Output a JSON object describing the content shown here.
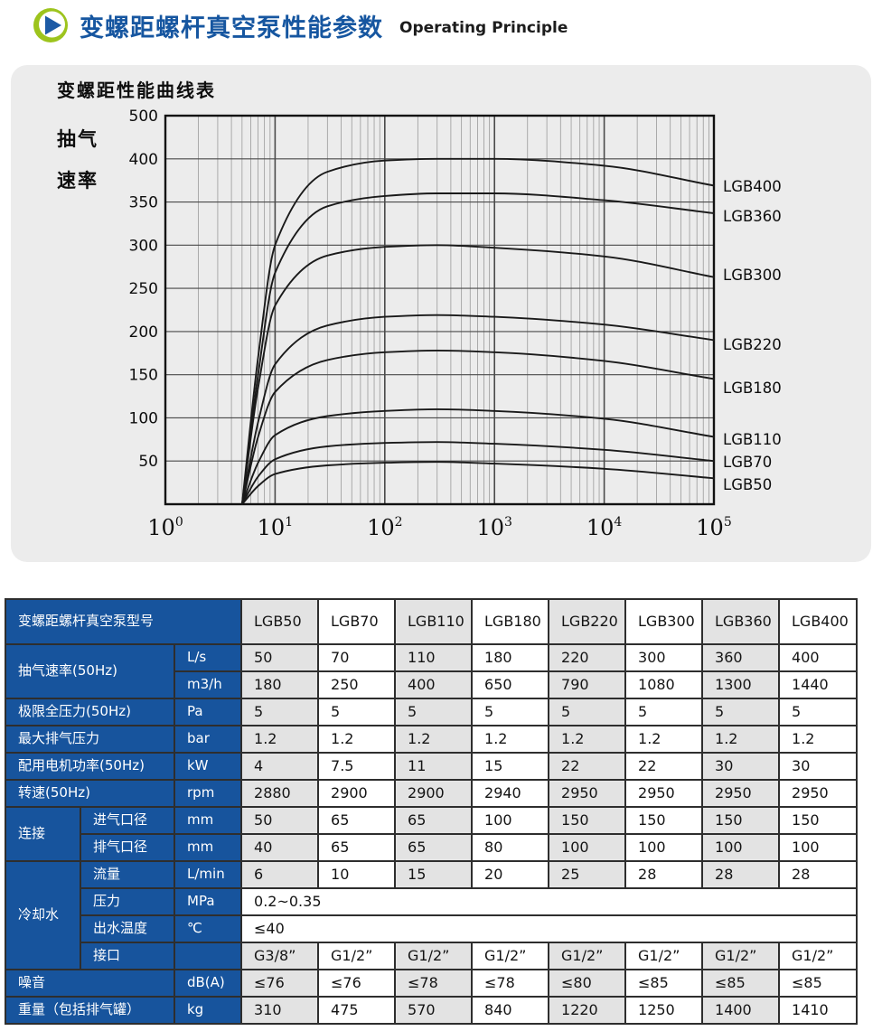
{
  "header": {
    "title_zh": "变螺距螺杆真空泵性能参数",
    "title_en": "Operating Principle",
    "icon": "play-icon"
  },
  "colors": {
    "accent_blue": "#17549d",
    "stripe_gray": "#e3e3e3",
    "panel_bg": "#ececec",
    "title_blue": "#1656a0",
    "icon_green": "#9dc41d",
    "icon_blue": "#1c5aa5",
    "curve_color": "#1a1a1a"
  },
  "chart_data": {
    "type": "line",
    "title": "变螺距性能曲线表",
    "ylabel_line1": "抽气",
    "ylabel_line2": "速率",
    "x_scale": "log",
    "x_range": [
      1,
      100000
    ],
    "x_tick_exponents": [
      0,
      1,
      2,
      3,
      4,
      5
    ],
    "x_tick_base": "10",
    "y_ticks": [
      50,
      100,
      150,
      200,
      250,
      300,
      350,
      400,
      500
    ],
    "y_axis_note": "top band 400-500 compressed to one step",
    "grid": true,
    "legend_position": "right-of-curves",
    "x_points": [
      5,
      7,
      10,
      30,
      100,
      300,
      1000,
      10000,
      100000
    ],
    "series": [
      {
        "name": "LGB400",
        "values": [
          0,
          170,
          300,
          385,
          398,
          400,
          400,
          392,
          369
        ],
        "label_y": 140
      },
      {
        "name": "LGB360",
        "values": [
          0,
          150,
          268,
          345,
          357,
          360,
          360,
          352,
          337
        ],
        "label_y": 173
      },
      {
        "name": "LGB300",
        "values": [
          0,
          135,
          230,
          288,
          298,
          300,
          297,
          287,
          263
        ],
        "label_y": 238
      },
      {
        "name": "LGB220",
        "values": [
          0,
          95,
          162,
          207,
          217,
          219,
          217,
          208,
          190
        ],
        "label_y": 315
      },
      {
        "name": "LGB180",
        "values": [
          0,
          78,
          130,
          167,
          176,
          178,
          176,
          166,
          145
        ],
        "label_y": 363
      },
      {
        "name": "LGB110",
        "values": [
          0,
          48,
          80,
          102,
          108,
          110,
          108,
          99,
          78
        ],
        "label_y": 420
      },
      {
        "name": "LGB70",
        "values": [
          0,
          32,
          52,
          67,
          71,
          72,
          70,
          63,
          50
        ],
        "label_y": 445
      },
      {
        "name": "LGB50",
        "values": [
          0,
          21,
          35,
          45,
          48,
          49,
          47,
          41,
          30
        ],
        "label_y": 470
      }
    ]
  },
  "table": {
    "model_header": "变螺距螺杆真空泵型号",
    "models": [
      "LGB50",
      "LGB70",
      "LGB110",
      "LGB180",
      "LGB220",
      "LGB300",
      "LGB360",
      "LGB400"
    ],
    "rows": [
      {
        "label": "抽气速率(50Hz)",
        "rowspan": 2,
        "unit": "L/s",
        "values": [
          "50",
          "70",
          "110",
          "180",
          "220",
          "300",
          "360",
          "400"
        ]
      },
      {
        "unit": "m3/h",
        "values": [
          "180",
          "250",
          "400",
          "650",
          "790",
          "1080",
          "1300",
          "1440"
        ]
      },
      {
        "label": "极限全压力(50Hz)",
        "unit": "Pa",
        "values": [
          "5",
          "5",
          "5",
          "5",
          "5",
          "5",
          "5",
          "5"
        ]
      },
      {
        "label": "最大排气压力",
        "unit": "bar",
        "values": [
          "1.2",
          "1.2",
          "1.2",
          "1.2",
          "1.2",
          "1.2",
          "1.2",
          "1.2"
        ]
      },
      {
        "label": "配用电机功率(50Hz)",
        "unit": "kW",
        "values": [
          "4",
          "7.5",
          "11",
          "15",
          "22",
          "22",
          "30",
          "30"
        ]
      },
      {
        "label": "转速(50Hz)",
        "unit": "rpm",
        "values": [
          "2880",
          "2900",
          "2900",
          "2940",
          "2950",
          "2950",
          "2950",
          "2950"
        ]
      },
      {
        "group": "连接",
        "group_rowspan": 2,
        "sub": "进气口径",
        "unit": "mm",
        "values": [
          "50",
          "65",
          "65",
          "100",
          "150",
          "150",
          "150",
          "150"
        ]
      },
      {
        "sub": "排气口径",
        "unit": "mm",
        "values": [
          "40",
          "65",
          "65",
          "80",
          "100",
          "100",
          "100",
          "100"
        ]
      },
      {
        "group": "冷却水",
        "group_rowspan": 4,
        "sub": "流量",
        "unit": "L/min",
        "values": [
          "6",
          "10",
          "15",
          "20",
          "25",
          "28",
          "28",
          "28"
        ]
      },
      {
        "sub": "压力",
        "unit": "MPa",
        "span_value": "0.2~0.35"
      },
      {
        "sub": "出水温度",
        "unit": "℃",
        "span_value": "≤40"
      },
      {
        "sub": "接口",
        "unit": "",
        "values": [
          "G3/8”",
          "G1/2”",
          "G1/2”",
          "G1/2”",
          "G1/2”",
          "G1/2”",
          "G1/2”",
          "G1/2”"
        ]
      },
      {
        "label": "噪音",
        "unit": "dB(A)",
        "values": [
          "≤76",
          "≤76",
          "≤78",
          "≤78",
          "≤80",
          "≤85",
          "≤85",
          "≤85"
        ]
      },
      {
        "label": "重量（包括排气罐）",
        "unit": "kg",
        "values": [
          "310",
          "475",
          "570",
          "840",
          "1220",
          "1250",
          "1400",
          "1410"
        ]
      }
    ]
  }
}
